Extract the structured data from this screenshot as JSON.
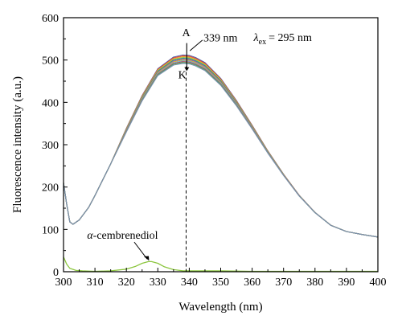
{
  "chart_data": {
    "type": "line",
    "xlabel": "Wavelength (nm)",
    "ylabel": "Fluorescence intensity (a.u.)",
    "xlim": [
      300,
      400
    ],
    "ylim": [
      0,
      600
    ],
    "xticks": [
      300,
      310,
      320,
      330,
      340,
      350,
      360,
      370,
      380,
      390,
      400
    ],
    "yticks": [
      0,
      100,
      200,
      300,
      400,
      500,
      600
    ],
    "grid": false,
    "annotations": {
      "peak_label": "339 nm",
      "lambda_symbol": "λ",
      "lambda_sub": "ex",
      "lambda_value": "= 295 nm",
      "top_label": "A",
      "bottom_label": "K",
      "compound_prefix": "α",
      "compound_suffix": "-cembrenediol",
      "dashed_line_x": 339
    },
    "series_colors": [
      "#4c5fa8",
      "#e0483c",
      "#f0a030",
      "#8bc34a",
      "#2a8f8f",
      "#9a5cb4",
      "#d4b32a",
      "#6aa6de",
      "#c0504d",
      "#3fae6f",
      "#7f8fb0"
    ],
    "series_peaks": [
      512,
      510,
      508,
      506,
      504,
      502,
      500,
      498,
      496,
      494,
      492
    ],
    "base_profile": {
      "x": [
        300,
        301,
        302,
        303,
        305,
        308,
        310,
        315,
        320,
        325,
        330,
        335,
        338,
        340,
        342,
        345,
        350,
        355,
        360,
        365,
        370,
        375,
        380,
        385,
        390,
        395,
        400
      ],
      "y": [
        210,
        160,
        118,
        112,
        122,
        152,
        180,
        255,
        338,
        415,
        478,
        505,
        510,
        509,
        504,
        492,
        455,
        403,
        345,
        285,
        230,
        180,
        140,
        110,
        95,
        88,
        82
      ]
    },
    "cembrenediol_series": {
      "name": "α-cembrenediol",
      "color": "#8cc63f",
      "x": [
        300,
        301,
        302,
        304,
        306,
        310,
        315,
        320,
        323,
        325,
        327,
        328,
        330,
        332,
        335,
        338,
        340,
        350,
        360,
        370,
        380,
        390,
        400
      ],
      "y": [
        35,
        18,
        8,
        3,
        2,
        1,
        2,
        6,
        13,
        20,
        24,
        24,
        20,
        12,
        5,
        2,
        2,
        2,
        1,
        1,
        1,
        1,
        1
      ]
    }
  }
}
